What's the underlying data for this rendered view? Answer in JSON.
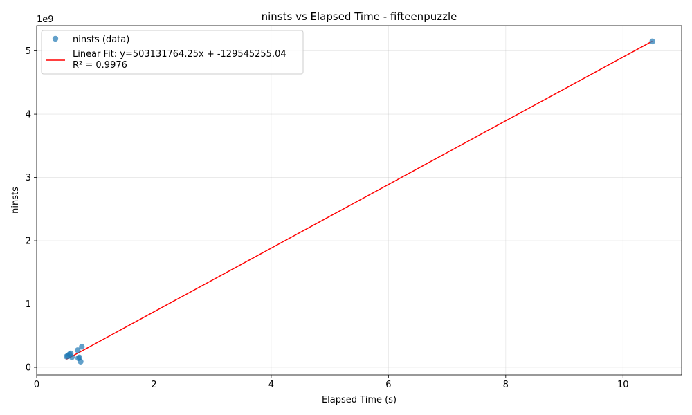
{
  "chart_data": {
    "type": "scatter",
    "title": "ninsts vs Elapsed Time - fifteenpuzzle",
    "xlabel": "Elapsed Time (s)",
    "ylabel": "ninsts",
    "y_offset_label": "1e9",
    "xlim": [
      0,
      11
    ],
    "ylim": [
      -120000000.0,
      5400000000.0
    ],
    "x_ticks": [
      0,
      2,
      4,
      6,
      8,
      10
    ],
    "x_tick_labels": [
      "0",
      "2",
      "4",
      "6",
      "8",
      "10"
    ],
    "y_ticks": [
      0,
      1000000000.0,
      2000000000.0,
      3000000000.0,
      4000000000.0,
      5000000000.0
    ],
    "y_tick_labels": [
      "0",
      "1",
      "2",
      "3",
      "4",
      "5"
    ],
    "grid": true,
    "legend_position": "upper-left",
    "series": [
      {
        "name": "ninsts (data)",
        "kind": "scatter",
        "color": "#1f77b4",
        "points": [
          {
            "x": 0.51,
            "y": 170000000.0
          },
          {
            "x": 0.53,
            "y": 180000000.0
          },
          {
            "x": 0.56,
            "y": 205000000.0
          },
          {
            "x": 0.58,
            "y": 220000000.0
          },
          {
            "x": 0.6,
            "y": 160000000.0
          },
          {
            "x": 0.7,
            "y": 270000000.0
          },
          {
            "x": 0.71,
            "y": 145000000.0
          },
          {
            "x": 0.73,
            "y": 155000000.0
          },
          {
            "x": 0.75,
            "y": 90000000.0
          },
          {
            "x": 0.77,
            "y": 325000000.0
          },
          {
            "x": 10.5,
            "y": 5150000000.0
          }
        ]
      },
      {
        "name": "Linear Fit: y=503131764.25x + -129545255.04",
        "name_line2": "R² = 0.9976",
        "kind": "line",
        "color": "#ff0000",
        "slope": 503131764.25,
        "intercept": -129545255.04,
        "x_range": [
          0.51,
          10.5
        ]
      }
    ]
  }
}
